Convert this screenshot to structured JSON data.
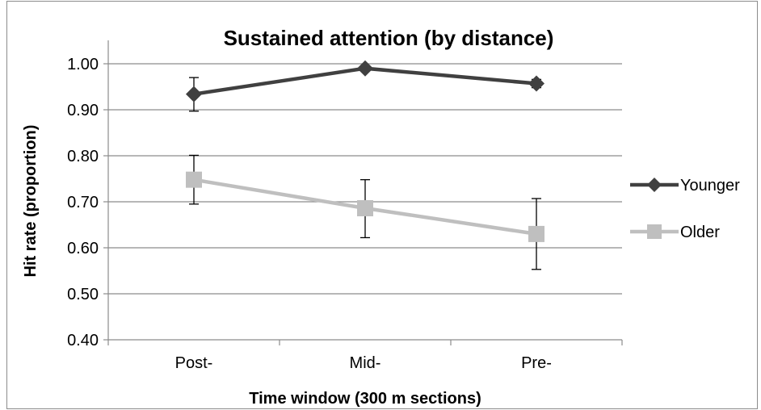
{
  "chart_data": {
    "type": "line",
    "title": "Sustained attention (by distance)",
    "xlabel": "Time window (300 m sections)",
    "ylabel": "Hit rate (proportion)",
    "categories": [
      "Post-",
      "Mid-",
      "Pre-"
    ],
    "ylim": [
      0.4,
      1.0
    ],
    "yticks": [
      "0.40",
      "0.50",
      "0.60",
      "0.70",
      "0.80",
      "0.90",
      "1.00"
    ],
    "grid": true,
    "legend_position": "right",
    "series": [
      {
        "name": "Younger",
        "values": [
          0.934,
          0.99,
          0.957
        ],
        "error_low": [
          0.897,
          0.99,
          0.948
        ],
        "error_high": [
          0.97,
          0.99,
          0.966
        ],
        "color": "#404040",
        "marker": "diamond"
      },
      {
        "name": "Older",
        "values": [
          0.748,
          0.686,
          0.63
        ],
        "error_low": [
          0.695,
          0.622,
          0.553
        ],
        "error_high": [
          0.801,
          0.748,
          0.707
        ],
        "color": "#bfbfbf",
        "marker": "square"
      }
    ]
  }
}
